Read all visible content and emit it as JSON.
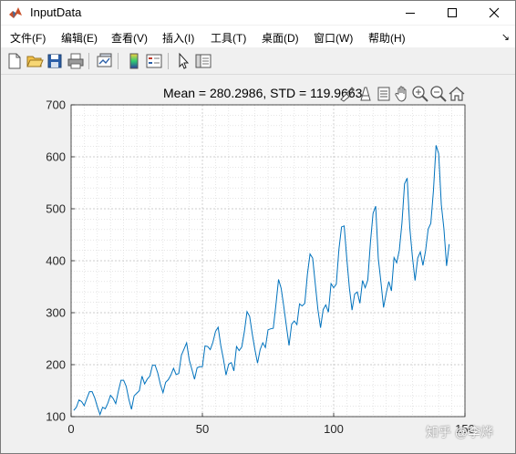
{
  "window": {
    "title": "InputData"
  },
  "menu": [
    "文件(F)",
    "编辑(E)",
    "查看(V)",
    "插入(I)",
    "工具(T)",
    "桌面(D)",
    "窗口(W)",
    "帮助(H)"
  ],
  "menu_collapse": "↘",
  "toolbar_icons": [
    "new-figure-icon",
    "open-file-icon",
    "save-icon",
    "print-icon",
    "link-plot-icon",
    "insert-colorbar-icon",
    "insert-legend-icon",
    "edit-plot-icon",
    "property-inspector-icon"
  ],
  "axes_toolbar_icons": [
    "brush-icon",
    "data-tips-icon",
    "rotate-icon",
    "pan-icon",
    "zoom-in-icon",
    "zoom-out-icon",
    "home-icon"
  ],
  "watermark": "知乎 @李烨",
  "chart_data": {
    "type": "line",
    "title": "Mean = 280.2986, STD = 119.9663",
    "xlabel": "",
    "ylabel": "",
    "xlim": [
      0,
      150
    ],
    "ylim": [
      100,
      700
    ],
    "xticks": [
      0,
      50,
      100,
      150
    ],
    "yticks": [
      100,
      200,
      300,
      400,
      500,
      600,
      700
    ],
    "grid": "on",
    "minor_grid": "on",
    "line_color": "#0072bd",
    "series": [
      {
        "x": [
          1,
          2,
          3,
          4,
          5,
          6,
          7,
          8,
          9,
          10,
          11,
          12,
          13,
          14,
          15,
          16,
          17,
          18,
          19,
          20,
          21,
          22,
          23,
          24,
          25,
          26,
          27,
          28,
          29,
          30,
          31,
          32,
          33,
          34,
          35,
          36,
          37,
          38,
          39,
          40,
          41,
          42,
          43,
          44,
          45,
          46,
          47,
          48,
          49,
          50,
          51,
          52,
          53,
          54,
          55,
          56,
          57,
          58,
          59,
          60,
          61,
          62,
          63,
          64,
          65,
          66,
          67,
          68,
          69,
          70,
          71,
          72,
          73,
          74,
          75,
          76,
          77,
          78,
          79,
          80,
          81,
          82,
          83,
          84,
          85,
          86,
          87,
          88,
          89,
          90,
          91,
          92,
          93,
          94,
          95,
          96,
          97,
          98,
          99,
          100,
          101,
          102,
          103,
          104,
          105,
          106,
          107,
          108,
          109,
          110,
          111,
          112,
          113,
          114,
          115,
          116,
          117,
          118,
          119,
          120,
          121,
          122,
          123,
          124,
          125,
          126,
          127,
          128,
          129,
          130,
          131,
          132,
          133,
          134,
          135,
          136,
          137,
          138,
          139,
          140,
          141,
          142,
          143,
          144
        ],
        "y": [
          112,
          118,
          132,
          129,
          121,
          135,
          148,
          148,
          136,
          119,
          104,
          118,
          115,
          126,
          141,
          135,
          125,
          149,
          170,
          170,
          158,
          133,
          114,
          140,
          145,
          150,
          178,
          163,
          172,
          178,
          199,
          199,
          184,
          162,
          146,
          166,
          171,
          180,
          193,
          181,
          183,
          218,
          230,
          242,
          209,
          191,
          172,
          194,
          196,
          196,
          236,
          235,
          229,
          243,
          264,
          272,
          237,
          211,
          180,
          201,
          204,
          188,
          235,
          227,
          234,
          264,
          302,
          293,
          259,
          229,
          203,
          229,
          242,
          233,
          267,
          269,
          270,
          315,
          364,
          347,
          312,
          274,
          237,
          278,
          284,
          277,
          317,
          313,
          318,
          374,
          413,
          405,
          355,
          306,
          271,
          306,
          315,
          301,
          356,
          348,
          355,
          422,
          465,
          467,
          404,
          347,
          305,
          336,
          340,
          318,
          362,
          348,
          363,
          435,
          491,
          505,
          404,
          359,
          310,
          337,
          360,
          342,
          406,
          396,
          420,
          472,
          548,
          559,
          463,
          407,
          362,
          405,
          417,
          391,
          419,
          461,
          472,
          535,
          622,
          606,
          508,
          461,
          390,
          432
        ]
      }
    ]
  }
}
